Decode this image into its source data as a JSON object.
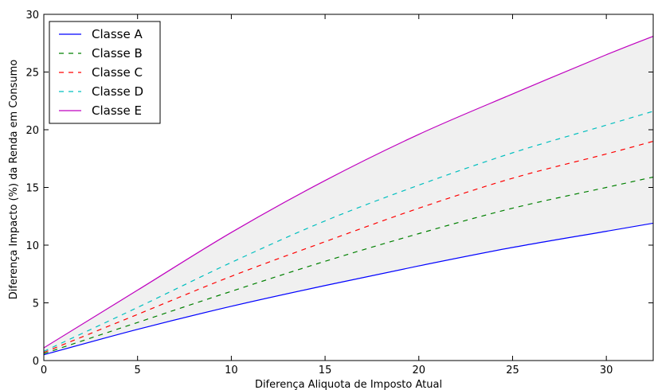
{
  "chart_data": {
    "type": "line",
    "title": "",
    "xlabel": "Diferença Aliquota de Imposto Atual",
    "ylabel": "Diferença Impacto (%) da Renda em Consumo",
    "xlim": [
      0,
      32.5
    ],
    "ylim": [
      0,
      30
    ],
    "xticks": [
      0,
      5,
      10,
      15,
      20,
      25,
      30
    ],
    "yticks": [
      0,
      5,
      10,
      15,
      20,
      25,
      30
    ],
    "grid": false,
    "legend_position": "top-left",
    "shaded_region": {
      "between": [
        "Classe A",
        "Classe E"
      ],
      "color": "#f0f0f0"
    },
    "x": [
      0,
      5,
      10,
      15,
      20,
      25,
      30,
      32.5
    ],
    "series": [
      {
        "name": "Classe A",
        "color": "#0000ff",
        "dash": "solid",
        "values": [
          0.5,
          2.7,
          4.7,
          6.5,
          8.2,
          9.8,
          11.2,
          11.9
        ]
      },
      {
        "name": "Classe B",
        "color": "#008000",
        "dash": "dashed",
        "values": [
          0.6,
          3.3,
          6.0,
          8.6,
          11.0,
          13.2,
          15.0,
          15.9
        ]
      },
      {
        "name": "Classe C",
        "color": "#ff0000",
        "dash": "dashed",
        "values": [
          0.7,
          4.0,
          7.3,
          10.3,
          13.2,
          15.8,
          17.9,
          19.0
        ]
      },
      {
        "name": "Classe D",
        "color": "#00bfbf",
        "dash": "dashed",
        "values": [
          0.8,
          4.6,
          8.5,
          12.1,
          15.2,
          18.0,
          20.4,
          21.6
        ]
      },
      {
        "name": "Classe E",
        "color": "#bf00bf",
        "dash": "solid",
        "values": [
          1.1,
          6.1,
          11.1,
          15.6,
          19.6,
          23.1,
          26.5,
          28.1
        ]
      }
    ]
  }
}
